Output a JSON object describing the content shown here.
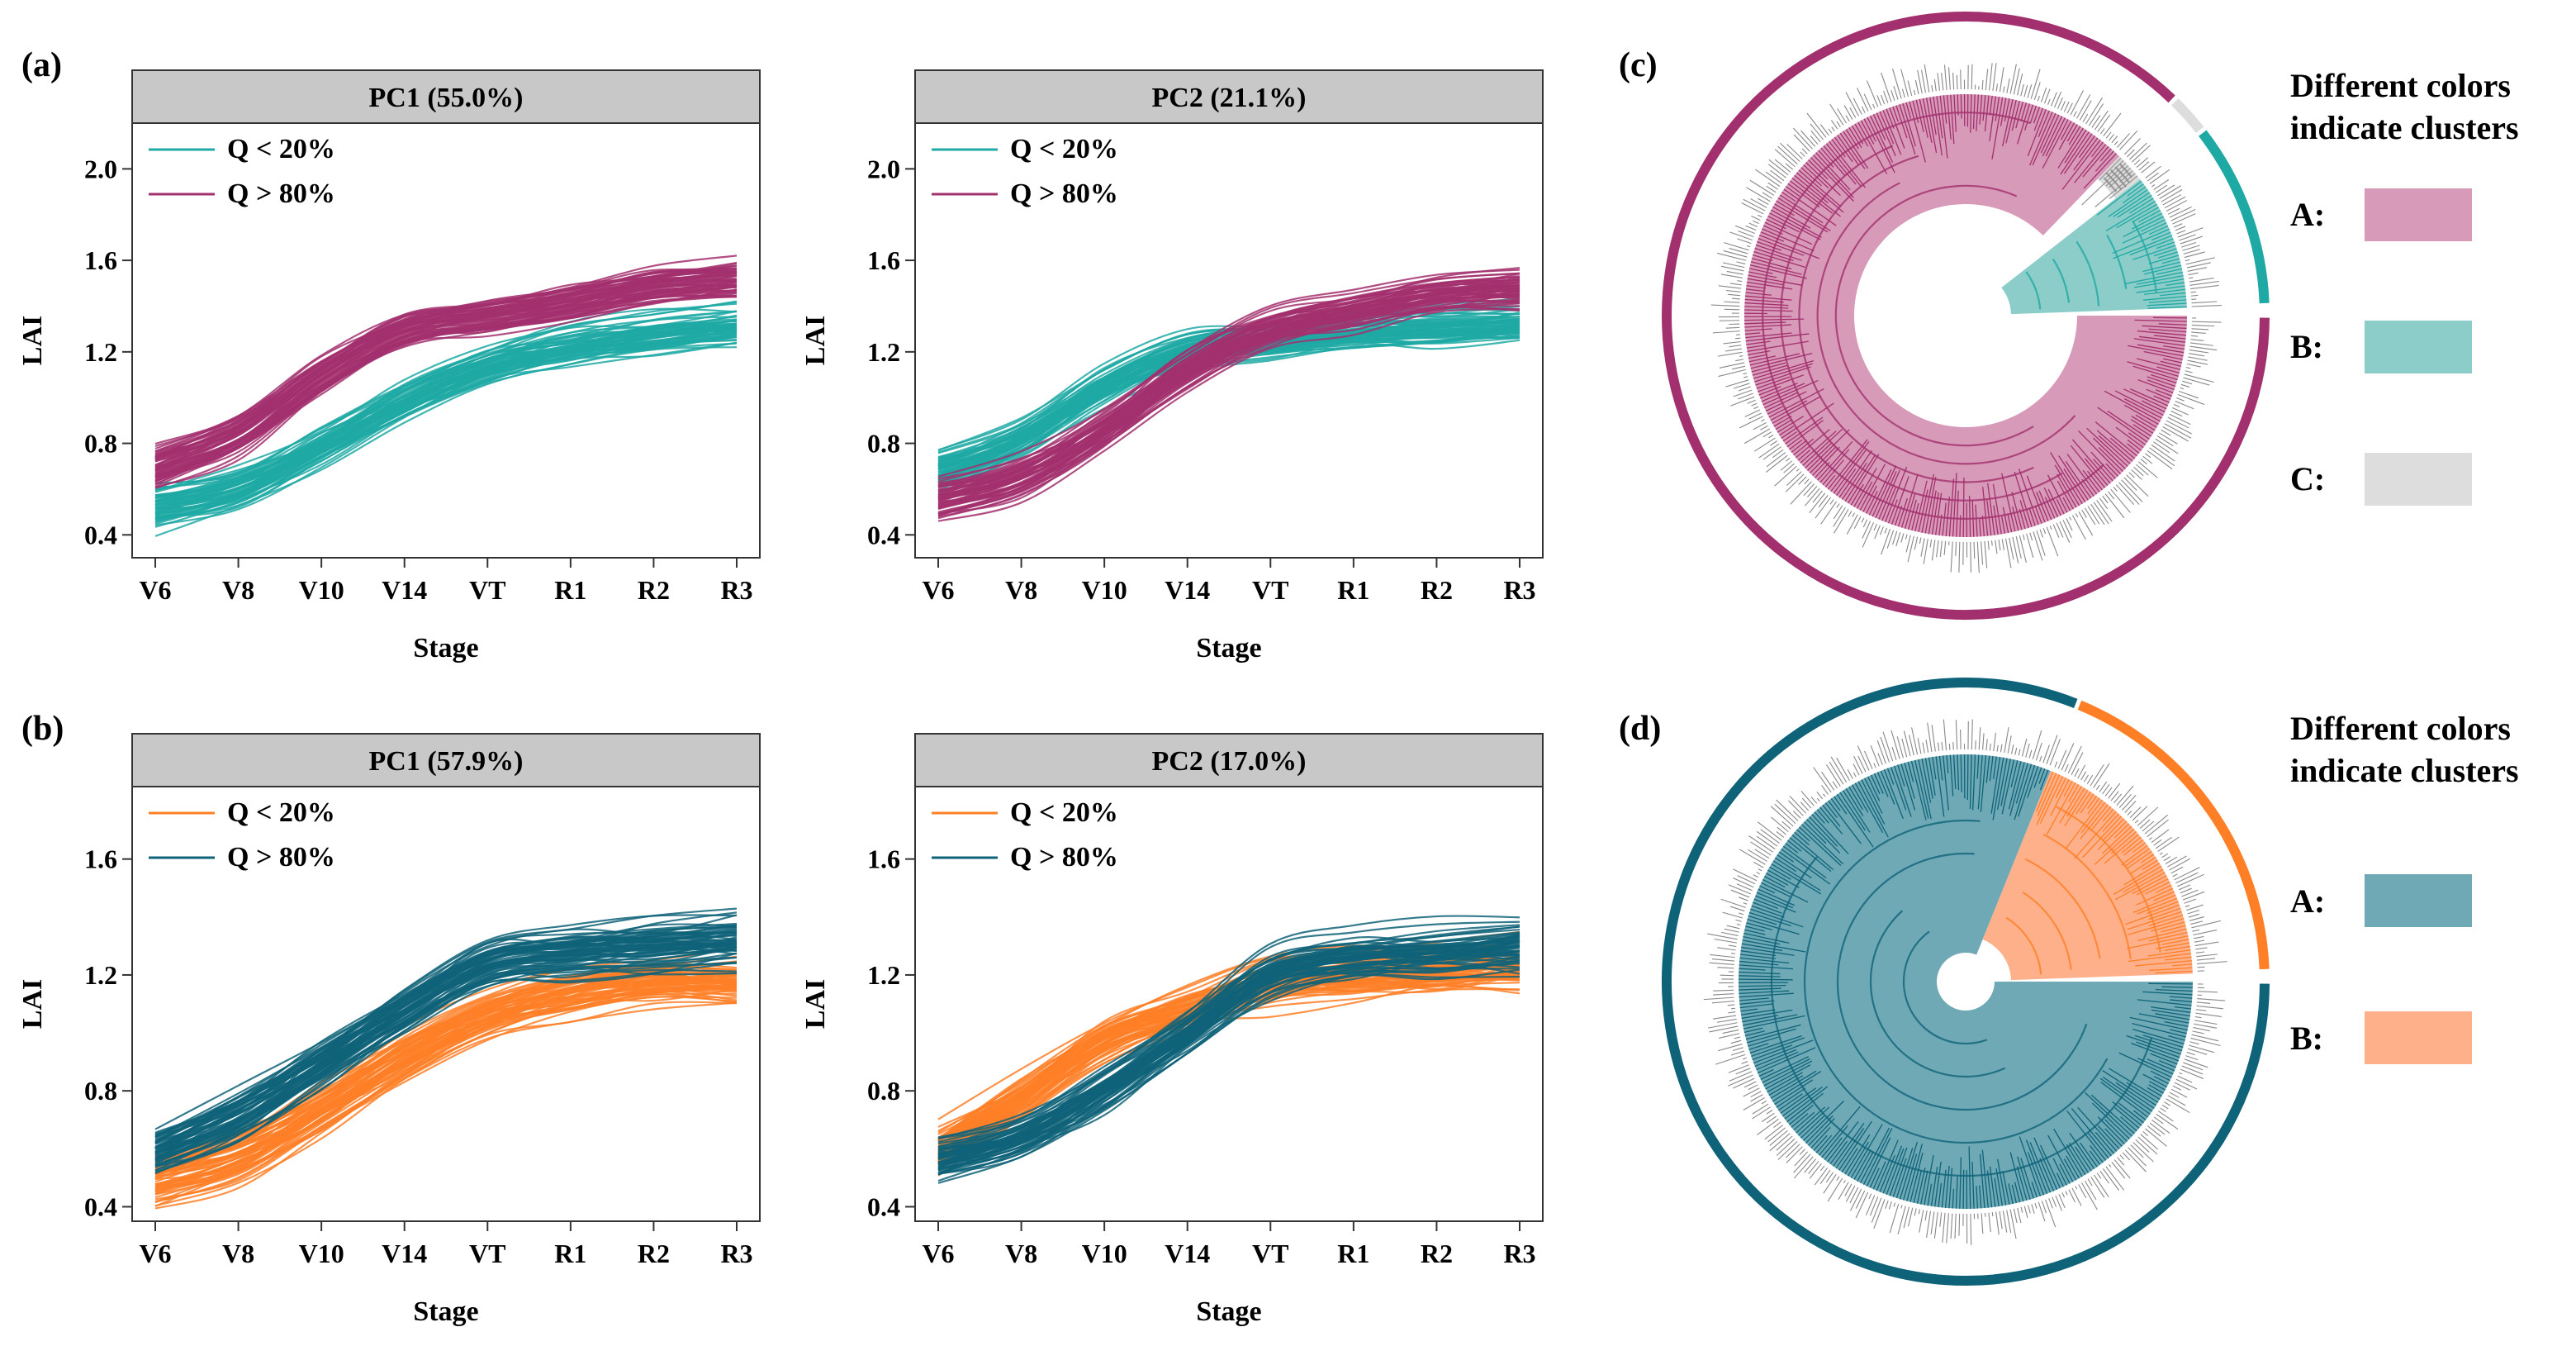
{
  "colors": {
    "teal": "#1fa9a4",
    "magenta": "#a3306e",
    "orange": "#ff7f27",
    "dark_teal": "#0f6379",
    "pink_fill": "#d79ab8",
    "teal_fill": "#8ccdc9",
    "gray_fill": "#dddddd",
    "dteal_fill": "#6fa9b6",
    "peach_fill": "#fdb089",
    "strip_bg": "#c8c8c8"
  },
  "panel_labels": {
    "a": "(a)",
    "b": "(b)",
    "c": "(c)",
    "d": "(d)"
  },
  "chart_data": [
    {
      "id": "a1",
      "type": "line",
      "title": "PC1 (55.0%)",
      "xlabel": "Stage",
      "ylabel": "LAI",
      "categories": [
        "V6",
        "V8",
        "V10",
        "V14",
        "VT",
        "R1",
        "R2",
        "R3"
      ],
      "yticks": [
        "0.4",
        "0.8",
        "1.2",
        "1.6",
        "2.0"
      ],
      "ylim": [
        0.3,
        2.2
      ],
      "legend": [
        "Q < 20%",
        "Q > 80%"
      ],
      "series": [
        {
          "name": "Q < 20%",
          "color": "teal",
          "values": [
            0.52,
            0.6,
            0.78,
            0.98,
            1.13,
            1.22,
            1.27,
            1.31
          ]
        },
        {
          "name": "Q > 80%",
          "color": "magenta",
          "values": [
            0.68,
            0.82,
            1.08,
            1.28,
            1.34,
            1.4,
            1.47,
            1.5
          ]
        }
      ]
    },
    {
      "id": "a2",
      "type": "line",
      "title": "PC2 (21.1%)",
      "xlabel": "Stage",
      "ylabel": "LAI",
      "categories": [
        "V6",
        "V8",
        "V10",
        "V14",
        "VT",
        "R1",
        "R2",
        "R3"
      ],
      "yticks": [
        "0.4",
        "0.8",
        "1.2",
        "1.6",
        "2.0"
      ],
      "ylim": [
        0.3,
        2.2
      ],
      "legend": [
        "Q < 20%",
        "Q > 80%"
      ],
      "series": [
        {
          "name": "Q < 20%",
          "color": "teal",
          "values": [
            0.68,
            0.82,
            1.05,
            1.2,
            1.24,
            1.28,
            1.3,
            1.32
          ]
        },
        {
          "name": "Q > 80%",
          "color": "magenta",
          "values": [
            0.55,
            0.65,
            0.86,
            1.12,
            1.3,
            1.38,
            1.45,
            1.48
          ]
        }
      ]
    },
    {
      "id": "b1",
      "type": "line",
      "title": "PC1 (57.9%)",
      "xlabel": "Stage",
      "ylabel": "LAI",
      "categories": [
        "V6",
        "V8",
        "V10",
        "V14",
        "VT",
        "R1",
        "R2",
        "R3"
      ],
      "yticks": [
        "0.4",
        "0.8",
        "1.2",
        "1.6"
      ],
      "ylim": [
        0.35,
        1.85
      ],
      "legend": [
        "Q < 20%",
        "Q > 80%"
      ],
      "series": [
        {
          "name": "Q < 20%",
          "color": "orange",
          "values": [
            0.5,
            0.58,
            0.74,
            0.92,
            1.06,
            1.14,
            1.18,
            1.18
          ]
        },
        {
          "name": "Q > 80%",
          "color": "dark_teal",
          "values": [
            0.6,
            0.72,
            0.9,
            1.08,
            1.24,
            1.28,
            1.3,
            1.32
          ]
        }
      ]
    },
    {
      "id": "b2",
      "type": "line",
      "title": "PC2 (17.0%)",
      "xlabel": "Stage",
      "ylabel": "LAI",
      "categories": [
        "V6",
        "V8",
        "V10",
        "V14",
        "VT",
        "R1",
        "R2",
        "R3"
      ],
      "yticks": [
        "0.4",
        "0.8",
        "1.2",
        "1.6"
      ],
      "ylim": [
        0.35,
        1.85
      ],
      "legend": [
        "Q < 20%",
        "Q > 80%"
      ],
      "series": [
        {
          "name": "Q < 20%",
          "color": "orange",
          "values": [
            0.6,
            0.78,
            0.98,
            1.08,
            1.17,
            1.2,
            1.22,
            1.23
          ]
        },
        {
          "name": "Q > 80%",
          "color": "dark_teal",
          "values": [
            0.56,
            0.64,
            0.8,
            1.0,
            1.2,
            1.26,
            1.28,
            1.3
          ]
        }
      ]
    }
  ],
  "dendrograms": {
    "c": {
      "legend_title": [
        "Different colors",
        "indicate clusters"
      ],
      "clusters": [
        {
          "label": "A:",
          "fill": "pink_fill",
          "ring": "magenta"
        },
        {
          "label": "B:",
          "fill": "teal_fill",
          "ring": "teal"
        },
        {
          "label": "C:",
          "fill": "gray_fill",
          "ring": "gray_fill"
        }
      ]
    },
    "d": {
      "legend_title": [
        "Different colors",
        "indicate clusters"
      ],
      "clusters": [
        {
          "label": "A:",
          "fill": "dteal_fill",
          "ring": "dark_teal"
        },
        {
          "label": "B:",
          "fill": "peach_fill",
          "ring": "orange"
        }
      ]
    }
  }
}
